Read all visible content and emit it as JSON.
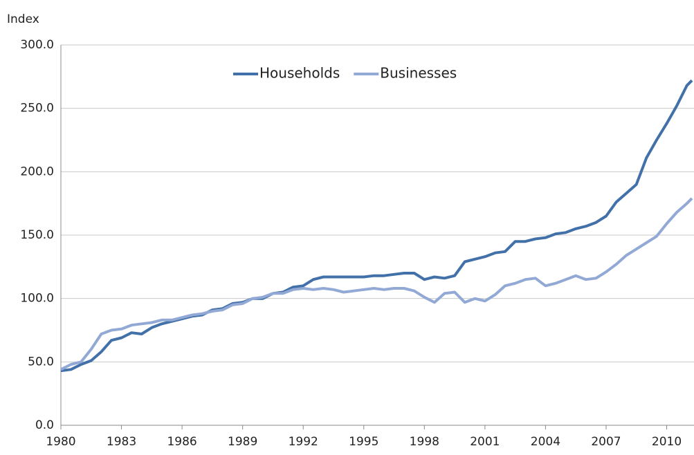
{
  "chart_data": {
    "type": "line",
    "y_label": "Index",
    "x": [
      1980,
      1980.5,
      1981,
      1981.5,
      1982,
      1982.5,
      1983,
      1983.5,
      1984,
      1984.5,
      1985,
      1985.5,
      1986,
      1986.5,
      1987,
      1987.5,
      1988,
      1988.5,
      1989,
      1989.5,
      1990,
      1990.5,
      1991,
      1991.5,
      1992,
      1992.5,
      1993,
      1993.5,
      1994,
      1994.5,
      1995,
      1995.5,
      1996,
      1996.5,
      1997,
      1997.5,
      1998,
      1998.5,
      1999,
      1999.5,
      2000,
      2000.5,
      2001,
      2001.5,
      2002,
      2002.5,
      2003,
      2003.5,
      2004,
      2004.5,
      2005,
      2005.5,
      2006,
      2006.5,
      2007,
      2007.5,
      2008,
      2008.5,
      2009,
      2009.5,
      2010,
      2010.5,
      2011,
      2011.25
    ],
    "series": [
      {
        "name": "Households",
        "color": "#4270a8",
        "values": [
          43,
          44,
          48,
          51,
          58,
          67,
          69,
          73,
          72,
          77,
          80,
          82,
          84,
          86,
          87,
          91,
          92,
          96,
          97,
          100,
          100,
          104,
          105,
          109,
          110,
          115,
          117,
          117,
          117,
          117,
          117,
          118,
          118,
          119,
          120,
          120,
          115,
          117,
          116,
          118,
          129,
          131,
          133,
          136,
          137,
          145,
          145,
          147,
          148,
          151,
          152,
          155,
          157,
          160,
          165,
          176,
          183,
          190,
          211,
          225,
          238,
          252,
          268,
          272
        ]
      },
      {
        "name": "Businesses",
        "color": "#91a9d4",
        "values": [
          44,
          48,
          50,
          60,
          72,
          75,
          76,
          79,
          80,
          81,
          83,
          83,
          85,
          87,
          88,
          90,
          91,
          95,
          96,
          100,
          101,
          104,
          104,
          107,
          108,
          107,
          108,
          107,
          105,
          106,
          107,
          108,
          107,
          108,
          108,
          106,
          101,
          97,
          104,
          105,
          97,
          100,
          98,
          103,
          110,
          112,
          115,
          116,
          110,
          112,
          115,
          118,
          115,
          116,
          121,
          127,
          134,
          139,
          144,
          149,
          159,
          168,
          175,
          179
        ]
      }
    ],
    "xlim": [
      1980,
      2011.25
    ],
    "xticks": [
      1980,
      1983,
      1986,
      1989,
      1992,
      1995,
      1998,
      2001,
      2004,
      2007,
      2010
    ],
    "ylim": [
      0,
      300
    ],
    "yticks": [
      {
        "value": 0,
        "label": "0.0"
      },
      {
        "value": 50,
        "label": "50.0"
      },
      {
        "value": 100,
        "label": "100.0"
      },
      {
        "value": 150,
        "label": "150.0"
      },
      {
        "value": 200,
        "label": "200.0"
      },
      {
        "value": 250,
        "label": "250.0"
      },
      {
        "value": 300,
        "label": "300.0"
      }
    ],
    "grid": true,
    "legend": "top"
  }
}
